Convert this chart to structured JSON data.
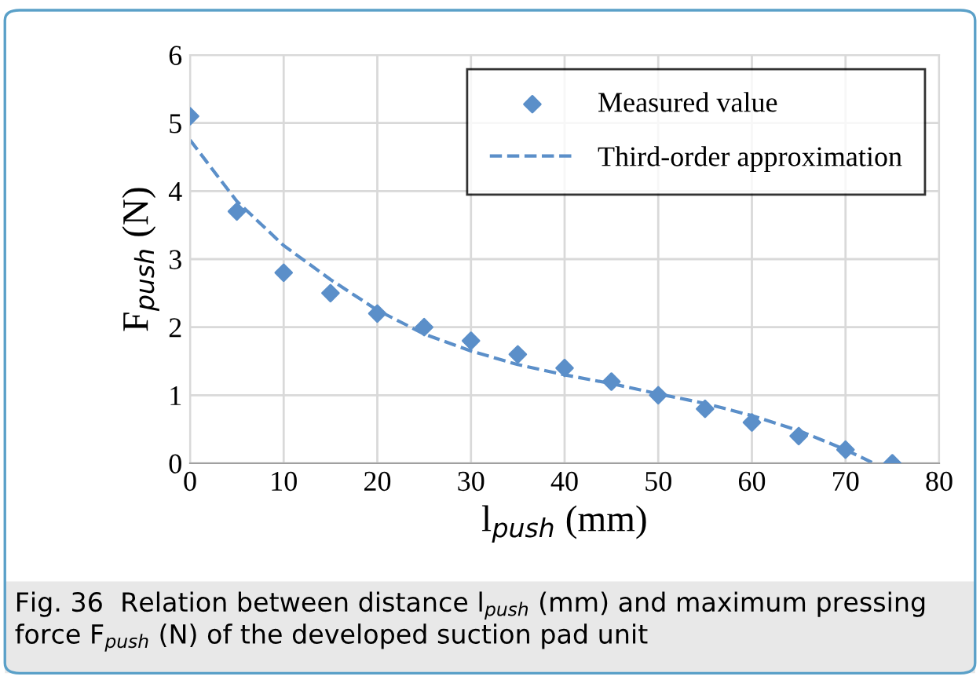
{
  "chart_data": {
    "type": "scatter",
    "xlabel": "l$_{push}$ (mm)",
    "ylabel": "F$_{push}$ (N)",
    "xlim": [
      0,
      80
    ],
    "xticks": [
      0,
      10,
      20,
      30,
      40,
      50,
      60,
      70,
      80
    ],
    "ylim": [
      0,
      6
    ],
    "yticks": [
      0,
      1,
      2,
      3,
      4,
      5,
      6
    ],
    "grid": true,
    "legend": "top right",
    "series": [
      {
        "name": "Measured value",
        "marker": "diamond",
        "color": "#5b8fc9",
        "x": [
          0,
          5,
          10,
          15,
          20,
          25,
          30,
          35,
          40,
          45,
          50,
          55,
          60,
          65,
          70,
          75
        ],
        "values": [
          5.1,
          3.7,
          2.8,
          2.5,
          2.2,
          2.0,
          1.8,
          1.6,
          1.4,
          1.2,
          1.0,
          0.8,
          0.6,
          0.4,
          0.2,
          0.0
        ]
      },
      {
        "name": "Third-order approximation",
        "type": "line",
        "line_style": "dashed",
        "marker": "none",
        "color": "#5b8fc9",
        "x": [
          0,
          5,
          10,
          15,
          20,
          25,
          30,
          35,
          40,
          45,
          50,
          55,
          60,
          65,
          70,
          73
        ],
        "values": [
          4.75,
          3.85,
          3.2,
          2.7,
          2.25,
          1.9,
          1.65,
          1.45,
          1.3,
          1.17,
          1.02,
          0.88,
          0.7,
          0.48,
          0.2,
          0.0
        ]
      }
    ],
    "annotations": [
      "Fig. 36  Relation between distance l$_{push}$ (mm) and maximum pressing force F$_{push}$ (N) of the developed suction pad unit"
    ]
  }
}
